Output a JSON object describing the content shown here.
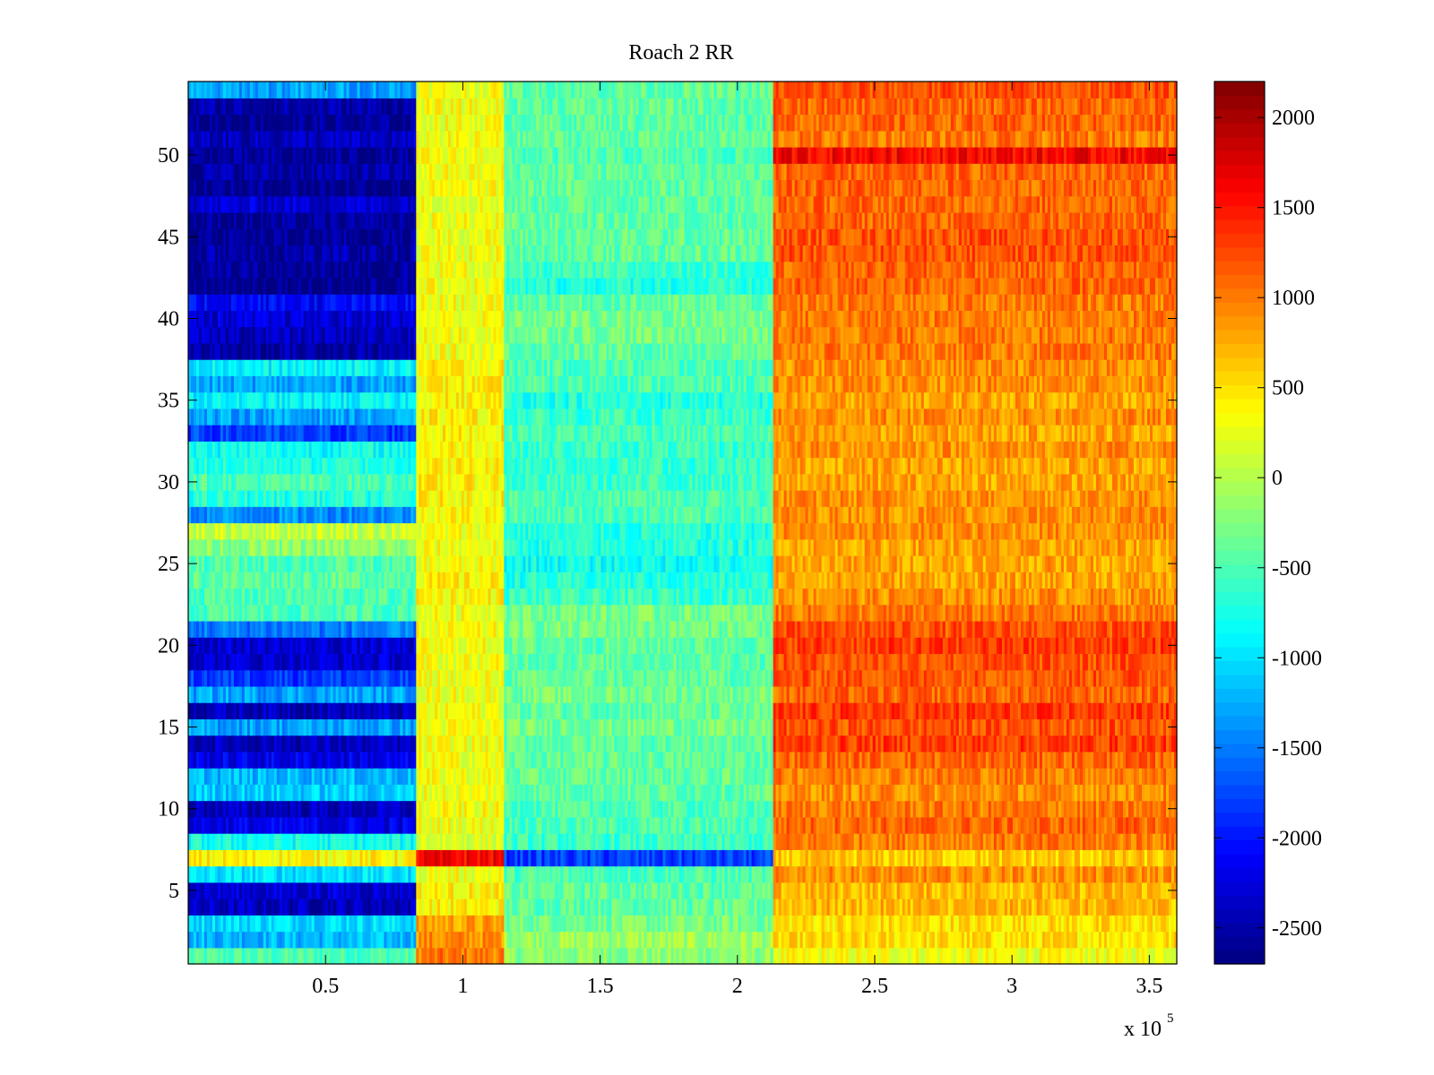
{
  "chart_data": {
    "type": "heatmap",
    "title": "Roach 2 RR",
    "xlabel": "",
    "ylabel": "",
    "x_multiplier_label": "x 10",
    "x_multiplier_exponent": "5",
    "xlim": [
      0,
      360000
    ],
    "ylim": [
      0.5,
      54.5
    ],
    "x_ticks": [
      {
        "value": 50000,
        "label": "0.5"
      },
      {
        "value": 100000,
        "label": "1"
      },
      {
        "value": 150000,
        "label": "1.5"
      },
      {
        "value": 200000,
        "label": "2"
      },
      {
        "value": 250000,
        "label": "2.5"
      },
      {
        "value": 300000,
        "label": "3"
      },
      {
        "value": 350000,
        "label": "3.5"
      }
    ],
    "y_ticks": [
      {
        "value": 5,
        "label": "5"
      },
      {
        "value": 10,
        "label": "10"
      },
      {
        "value": 15,
        "label": "15"
      },
      {
        "value": 20,
        "label": "20"
      },
      {
        "value": 25,
        "label": "25"
      },
      {
        "value": 30,
        "label": "30"
      },
      {
        "value": 35,
        "label": "35"
      },
      {
        "value": 40,
        "label": "40"
      },
      {
        "value": 45,
        "label": "45"
      },
      {
        "value": 50,
        "label": "50"
      }
    ],
    "rows": 54,
    "colorbar": {
      "colormap": "jet",
      "clim": [
        -2700,
        2200
      ],
      "ticks": [
        {
          "value": -2500,
          "label": "-2500"
        },
        {
          "value": -2000,
          "label": "-2000"
        },
        {
          "value": -1500,
          "label": "-1500"
        },
        {
          "value": -1000,
          "label": "-1000"
        },
        {
          "value": -500,
          "label": "-500"
        },
        {
          "value": 0,
          "label": "0"
        },
        {
          "value": 500,
          "label": "500"
        },
        {
          "value": 1000,
          "label": "1000"
        },
        {
          "value": 1500,
          "label": "1500"
        },
        {
          "value": 2000,
          "label": "2000"
        }
      ]
    },
    "segments_x": [
      {
        "x0": 0,
        "x1": 83000,
        "name": "segment-1"
      },
      {
        "x0": 83000,
        "x1": 115000,
        "name": "segment-2"
      },
      {
        "x0": 115000,
        "x1": 213000,
        "name": "segment-3"
      },
      {
        "x0": 213000,
        "x1": 360000,
        "name": "segment-4"
      }
    ],
    "band_means_by_row": [
      [
        -500,
        1000,
        -200,
        300
      ],
      [
        -1200,
        900,
        -100,
        500
      ],
      [
        -1000,
        800,
        -300,
        500
      ],
      [
        -2400,
        400,
        -400,
        700
      ],
      [
        -2300,
        400,
        -400,
        700
      ],
      [
        -1000,
        300,
        -500,
        900
      ],
      [
        400,
        1600,
        -1800,
        600
      ],
      [
        -800,
        200,
        -600,
        1000
      ],
      [
        -2200,
        300,
        -500,
        1100
      ],
      [
        -2400,
        300,
        -500,
        1000
      ],
      [
        -1100,
        300,
        -400,
        900
      ],
      [
        -1200,
        300,
        -400,
        1000
      ],
      [
        -2200,
        300,
        -400,
        1100
      ],
      [
        -2400,
        300,
        -400,
        1300
      ],
      [
        -1300,
        300,
        -300,
        1200
      ],
      [
        -2400,
        300,
        -400,
        1300
      ],
      [
        -1300,
        300,
        -300,
        1100
      ],
      [
        -1800,
        300,
        -400,
        1200
      ],
      [
        -2300,
        300,
        -400,
        1200
      ],
      [
        -2300,
        300,
        -400,
        1300
      ],
      [
        -1500,
        300,
        -300,
        1200
      ],
      [
        -500,
        300,
        -300,
        1000
      ],
      [
        -500,
        400,
        -600,
        900
      ],
      [
        -400,
        400,
        -700,
        800
      ],
      [
        -500,
        300,
        -800,
        800
      ],
      [
        -200,
        300,
        -700,
        800
      ],
      [
        100,
        300,
        -700,
        900
      ],
      [
        -1400,
        400,
        -500,
        900
      ],
      [
        -700,
        400,
        -500,
        900
      ],
      [
        -500,
        400,
        -600,
        800
      ],
      [
        -700,
        400,
        -600,
        800
      ],
      [
        -800,
        400,
        -600,
        900
      ],
      [
        -1800,
        400,
        -500,
        800
      ],
      [
        -1300,
        400,
        -600,
        900
      ],
      [
        -900,
        400,
        -700,
        800
      ],
      [
        -1300,
        400,
        -500,
        900
      ],
      [
        -900,
        400,
        -500,
        900
      ],
      [
        -2500,
        300,
        -400,
        1000
      ],
      [
        -2400,
        300,
        -300,
        1000
      ],
      [
        -2300,
        300,
        -300,
        1000
      ],
      [
        -2100,
        300,
        -400,
        1000
      ],
      [
        -2600,
        300,
        -700,
        1100
      ],
      [
        -2600,
        300,
        -600,
        1100
      ],
      [
        -2500,
        300,
        -400,
        1200
      ],
      [
        -2600,
        300,
        -400,
        1200
      ],
      [
        -2600,
        300,
        -400,
        1100
      ],
      [
        -2300,
        300,
        -400,
        1100
      ],
      [
        -2600,
        300,
        -400,
        1100
      ],
      [
        -2500,
        300,
        -400,
        1100
      ],
      [
        -2600,
        300,
        -500,
        1600
      ],
      [
        -2400,
        300,
        -400,
        1000
      ],
      [
        -2600,
        300,
        -400,
        1100
      ],
      [
        -2500,
        300,
        -400,
        1100
      ],
      [
        -1300,
        300,
        -400,
        1200
      ]
    ]
  }
}
